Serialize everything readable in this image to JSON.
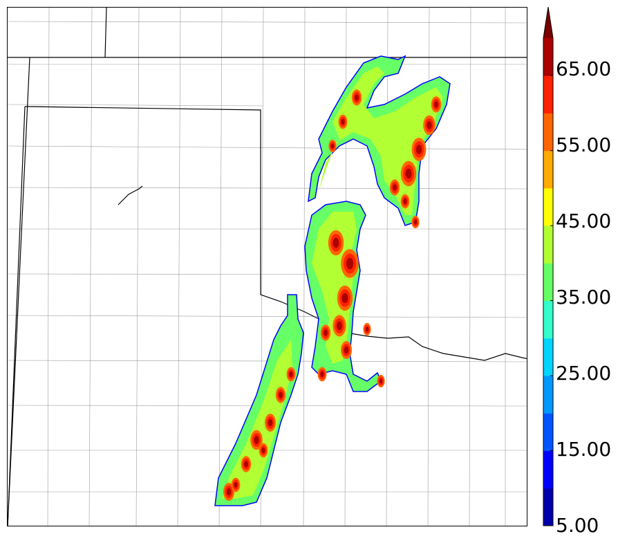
{
  "colorbar": {
    "levels": [
      5,
      10,
      15,
      20,
      25,
      30,
      35,
      40,
      45,
      50,
      55,
      60,
      65,
      70
    ],
    "colors": [
      "#0000aa",
      "#0000ff",
      "#0055ff",
      "#0099ff",
      "#00d4ff",
      "#33ffcc",
      "#66ff66",
      "#b2ff33",
      "#ffff00",
      "#ffaa00",
      "#ff6600",
      "#ff2200",
      "#aa0000"
    ],
    "extend_color": "#7a0000",
    "tick_labels": [
      "5.00",
      "15.00",
      "25.00",
      "35.00",
      "45.00",
      "55.00",
      "65.00"
    ]
  },
  "map": {
    "background": "#ffffff",
    "boundary_color": "#000000",
    "county_color": "#9a9a9a"
  }
}
